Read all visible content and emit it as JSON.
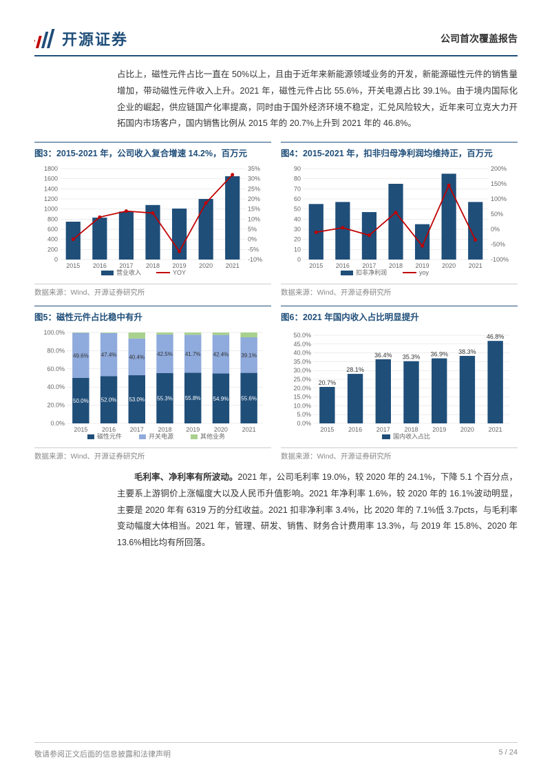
{
  "header": {
    "company_name": "开源证券",
    "report_type": "公司首次覆盖报告"
  },
  "paragraph1": "占比上，磁性元件占比一直在 50%以上，且由于近年来新能源领域业务的开发，新能源磁性元件的销售量增加，带动磁性元件收入上升。2021 年，磁性元件占比 55.6%，开关电源占比 39.1%。由于境内国际化企业的崛起，供应链国产化率提高，同时由于国外经济环境不稳定，汇兑风险较大，近年来可立克大力开拓国内市场客户，国内销售比例从 2015 年的 20.7%上升到 2021 年的 46.8%。",
  "paragraph2_bold": "毛利率、净利率有所波动。",
  "paragraph2": "2021 年，公司毛利率 19.0%，较 2020 年的 24.1%，下降 5.1 个百分点，主要系上游铜价上涨幅度大以及人民币升值影响。2021 年净利率 1.6%，较 2020 年的 16.1%波动明显，主要是 2020 年有 6319 万的分红收益。2021 扣非净利率 3.4%，比 2020 年的 7.1%低 3.7pcts，与毛利率变动幅度大体相当。2021 年，管理、研发、销售、财务合计费用率 13.3%，与 2019 年 15.8%、2020 年 13.6%相比均有所回落。",
  "chart3": {
    "title": "图3：2015-2021 年，公司收入复合增速 14.2%，百万元",
    "type": "bar+line",
    "categories": [
      "2015",
      "2016",
      "2017",
      "2018",
      "2019",
      "2020",
      "2021"
    ],
    "bar_values": [
      750,
      830,
      950,
      1080,
      1010,
      1200,
      1650
    ],
    "line_values": [
      0,
      11,
      14,
      13,
      -6,
      18,
      32
    ],
    "y1_max": 1800,
    "y1_step": 200,
    "y2_min": -10,
    "y2_max": 35,
    "y2_step": 5,
    "bar_color": "#1f4e79",
    "line_color": "#c00000",
    "bar_legend": "营业收入",
    "line_legend": "YOY",
    "source": "数据来源：Wind、开源证券研究所",
    "bg_color": "#ffffff",
    "grid_color": "#d9d9d9",
    "axis_font_size": 9
  },
  "chart4": {
    "title": "图4：2015-2021 年，扣非归母净利润均维持正，百万元",
    "type": "bar+line",
    "categories": [
      "2015",
      "2016",
      "2017",
      "2018",
      "2019",
      "2020",
      "2021"
    ],
    "bar_values": [
      55,
      57,
      47,
      75,
      35,
      85,
      57
    ],
    "line_values": [
      -10,
      5,
      -20,
      55,
      -55,
      145,
      -35
    ],
    "y1_max": 90,
    "y1_step": 10,
    "y2_min": -100,
    "y2_max": 200,
    "y2_step": 50,
    "bar_color": "#1f4e79",
    "line_color": "#c00000",
    "bar_legend": "扣非净利润",
    "line_legend": "yoy",
    "source": "数据来源：Wind、开源证券研究所",
    "bg_color": "#ffffff",
    "grid_color": "#d9d9d9",
    "axis_font_size": 9
  },
  "chart5": {
    "title": "图5：磁性元件占比稳中有升",
    "type": "stacked-bar",
    "categories": [
      "2015",
      "2016",
      "2017",
      "2018",
      "2019",
      "2020",
      "2021"
    ],
    "series": [
      {
        "name": "磁性元件",
        "color": "#1f4e79",
        "values": [
          50.0,
          52.0,
          53.0,
          55.3,
          55.8,
          54.9,
          55.6
        ]
      },
      {
        "name": "开关电源",
        "color": "#8faadc",
        "values": [
          49.6,
          47.4,
          40.4,
          42.5,
          41.7,
          42.4,
          39.1
        ]
      },
      {
        "name": "其他业务",
        "color": "#a9d18e",
        "values": [
          0.4,
          0.6,
          6.6,
          2.2,
          2.5,
          2.7,
          5.3
        ]
      }
    ],
    "labels_top": [
      "49.6%",
      "47.4%",
      "40.4%",
      "42.5%",
      "41.7%",
      "42.4%",
      "39.1%"
    ],
    "labels_bot": [
      "50.0%",
      "52.0%",
      "53.0%",
      "55.3%",
      "55.8%",
      "54.9%",
      "55.6%"
    ],
    "y_max": 100,
    "y_step": 20,
    "source": "数据来源：Wind、开源证券研究所",
    "bg_color": "#ffffff",
    "grid_color": "#d9d9d9",
    "axis_font_size": 9
  },
  "chart6": {
    "title": "图6：2021 年国内收入占比明显提升",
    "type": "bar",
    "categories": [
      "2015",
      "2016",
      "2017",
      "2018",
      "2019",
      "2020",
      "2021"
    ],
    "values": [
      20.7,
      28.1,
      36.4,
      35.3,
      36.9,
      38.3,
      46.8
    ],
    "value_labels": [
      "20.7%",
      "28.1%",
      "36.4%",
      "35.3%",
      "36.9%",
      "38.3%",
      "46.8%"
    ],
    "y_max": 50,
    "y_step": 5,
    "bar_color": "#1f4e79",
    "legend": "国内收入占比",
    "source": "数据来源：Wind、开源证券研究所",
    "bg_color": "#ffffff",
    "grid_color": "#d9d9d9",
    "axis_font_size": 9
  },
  "footer": {
    "disclaimer": "敬请参阅正文后面的信息披露和法律声明",
    "page": "5 / 24"
  }
}
